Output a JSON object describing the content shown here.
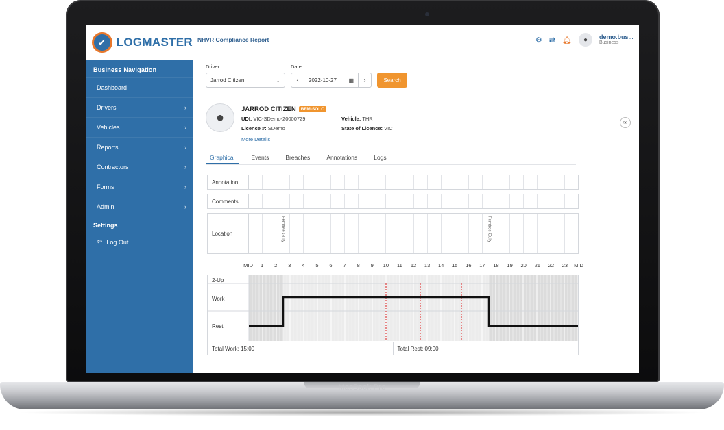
{
  "device_label": "MacBook Pro",
  "app": {
    "logo_text": "LOGMASTER",
    "page_title": "NHVR Compliance Report"
  },
  "sidebar": {
    "heading": "Business Navigation",
    "items": [
      {
        "label": "Dashboard",
        "has_children": false
      },
      {
        "label": "Drivers",
        "has_children": true
      },
      {
        "label": "Vehicles",
        "has_children": true
      },
      {
        "label": "Reports",
        "has_children": true
      },
      {
        "label": "Contractors",
        "has_children": true
      },
      {
        "label": "Forms",
        "has_children": true
      },
      {
        "label": "Admin",
        "has_children": true
      }
    ],
    "settings": "Settings",
    "logout": "Log Out"
  },
  "header": {
    "user_name": "demo.bus...",
    "user_role": "Business",
    "icons": [
      "gear-icon",
      "swap-icon",
      "bell-icon",
      "user-icon"
    ]
  },
  "filters": {
    "driver_label": "Driver:",
    "driver_value": "Jarrod Citizen",
    "date_label": "Date:",
    "date_value": "2022-10-27",
    "search_label": "Search"
  },
  "driver": {
    "name": "JARROD CITIZEN",
    "badge": "BFM-SOLO",
    "udi_label": "UDI:",
    "udi_value": "VIC-SDemo-20000729",
    "licence_label": "Licence #:",
    "licence_value": "SDemo",
    "vehicle_label": "Vehicle:",
    "vehicle_value": "THR",
    "state_label": "State of Licence:",
    "state_value": "VIC",
    "more": "More Details"
  },
  "tabs": [
    "Graphical",
    "Events",
    "Breaches",
    "Annotations",
    "Logs"
  ],
  "rows": {
    "annotation": "Annotation",
    "comments": "Comments",
    "location": "Location"
  },
  "locations": [
    {
      "hour_index": 2,
      "text": "Ferntree Gully"
    },
    {
      "hour_index": 17,
      "text": "Ferntree Gully"
    }
  ],
  "hour_labels": [
    "MID",
    "1",
    "2",
    "3",
    "4",
    "5",
    "6",
    "7",
    "8",
    "9",
    "10",
    "11",
    "12",
    "13",
    "14",
    "15",
    "16",
    "17",
    "18",
    "19",
    "20",
    "21",
    "22",
    "23",
    "MID"
  ],
  "chart_data": {
    "type": "line",
    "categories": [
      "2-Up",
      "Work",
      "Rest"
    ],
    "segments": [
      {
        "status": "Rest",
        "start_hour": 0,
        "end_hour": 2.5
      },
      {
        "status": "Work",
        "start_hour": 2.5,
        "end_hour": 17.5
      },
      {
        "status": "Rest",
        "start_hour": 17.5,
        "end_hour": 24
      }
    ],
    "red_markers_hours": [
      10,
      12.5,
      15.5
    ],
    "shaded_ranges_hours": [
      [
        0,
        2.5
      ],
      [
        17.5,
        24
      ]
    ]
  },
  "totals": {
    "work": "Total Work:  15:00",
    "rest": "Total Rest:  09:00"
  },
  "colors": {
    "sidebar": "#2f6fa8",
    "accent": "#f0952f",
    "marker": "#e02020"
  }
}
